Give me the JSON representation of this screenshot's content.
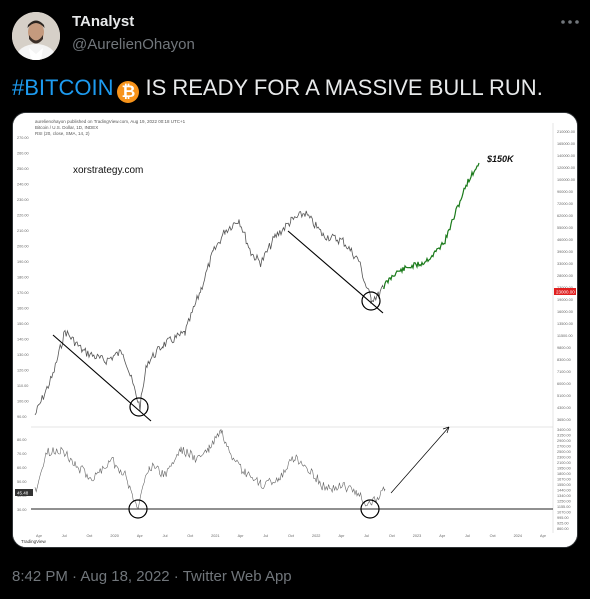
{
  "author": {
    "name": "TAnalyst",
    "handle": "@AurelienOhayon",
    "avatar_icon": "avatar"
  },
  "more_icon": "more-horizontal-icon",
  "tweet": {
    "hashtag": "#BITCOIN",
    "emoji_icon": "bitcoin-icon",
    "emoji_glyph": "₿",
    "text": "IS READY FOR A MASSIVE BULL RUN."
  },
  "chart_image": {
    "header_line1": "aurelienohayon published on TradingView.com, Aug 19, 2022 00:18 UTC+1",
    "header_line2": "Bitcoin / U.S. Dollar, 1D, INDEX",
    "header_line3": "RSI (20, close, SMA, 14, 2)",
    "watermark": "xorstrategy.com",
    "target_label": "$150K",
    "price_tag": "23000.00",
    "rsi_tag": "45.48",
    "footer_logo": "TradingView",
    "colors": {
      "price_line": "#555555",
      "projection": "#1a7a1a",
      "price_tag": "#e02020",
      "rsi_tag": "#333333"
    }
  },
  "chart_data": {
    "type": "line",
    "y_left_ticks": [
      "270.00",
      "260.00",
      "250.00",
      "240.00",
      "230.00",
      "220.00",
      "210.00",
      "200.00",
      "190.00",
      "180.00",
      "170.00",
      "160.00",
      "150.00",
      "140.00",
      "130.00",
      "120.00",
      "110.00",
      "100.00",
      "90.00"
    ],
    "y_right_ticks": [
      "210000.00",
      "165000.00",
      "140000.00",
      "120000.00",
      "100000.00",
      "90000.00",
      "72000.00",
      "62000.00",
      "55000.00",
      "46000.00",
      "39000.00",
      "33000.00",
      "28000.00",
      "23000.00",
      "19000.00",
      "16000.00",
      "13500.00",
      "11500.00",
      "9800.00",
      "8300.00",
      "7100.00",
      "6000.00",
      "5100.00",
      "4300.00",
      "3650.00"
    ],
    "rsi_left_ticks": [
      "80.00",
      "70.00",
      "60.00",
      "50.00",
      "40.00",
      "30.00"
    ],
    "rsi_right_ticks": [
      "3400.00",
      "3150.00",
      "2900.00",
      "2700.00",
      "2500.00",
      "2300.00",
      "2100.00",
      "1950.00",
      "1800.00",
      "1670.00",
      "1550.00",
      "1440.00",
      "1340.00",
      "1250.00",
      "1155.00",
      "1070.00",
      "995.00",
      "925.00",
      "860.00"
    ],
    "x_ticks": [
      "Apr",
      "Jul",
      "Oct",
      "2020",
      "Apr",
      "Jul",
      "Oct",
      "2021",
      "Apr",
      "Jul",
      "Oct",
      "2022",
      "Apr",
      "Jul",
      "Oct",
      "2023",
      "Apr",
      "Jul",
      "Oct",
      "2024",
      "Apr"
    ]
  },
  "footer": {
    "time": "8:42 PM",
    "sep1": " · ",
    "date": "Aug 18, 2022",
    "sep2": " · ",
    "client": "Twitter Web App"
  }
}
